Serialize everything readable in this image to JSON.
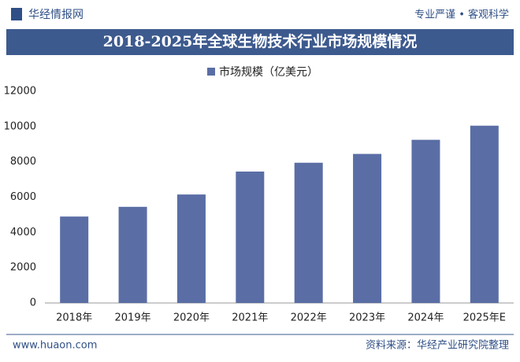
{
  "header": {
    "logo": "华经情报网",
    "slogan": "专业严谨 • 客观科学"
  },
  "footer": {
    "url": "www.huaon.com",
    "source": "资料来源：华经产业研究院整理"
  },
  "chart_data": {
    "type": "bar",
    "title": "2018-2025年全球生物技术行业市场规模情况",
    "categories": [
      "2018年",
      "2019年",
      "2020年",
      "2021年",
      "2022年",
      "2023年",
      "2024年",
      "2025年E"
    ],
    "series": [
      {
        "name": "市场规模（亿美元）",
        "color": "#5a6ea5",
        "values": [
          4900,
          5450,
          6150,
          7450,
          7950,
          8450,
          9250,
          10050
        ]
      }
    ],
    "ylim": [
      0,
      12000
    ],
    "yticks": [
      0,
      2000,
      4000,
      6000,
      8000,
      10000,
      12000
    ],
    "grid": false
  }
}
